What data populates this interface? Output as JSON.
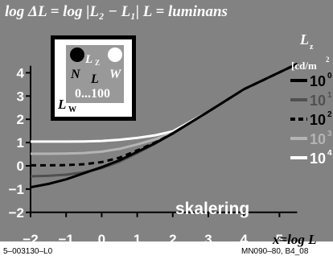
{
  "header": {
    "title": "log ΔL = log |L₂ − L₁|   L = luminans"
  },
  "footer": {
    "left_code": "5–003130–L0",
    "right_code": "MN090–80, B4_08"
  },
  "colors": {
    "background": "#828282",
    "frame": "#ffffff",
    "text": "#ffffff"
  },
  "inset": {
    "label_n": "N",
    "label_l": "L",
    "label_w": "W",
    "label_lz": "L",
    "label_lz_sub": "Z",
    "range": "0...100",
    "label_lw": "L",
    "label_lw_sub": "W"
  },
  "legend": {
    "title": "L",
    "title_sub": "z",
    "unit": "[cd/m",
    "unit_sup": "2",
    "items": [
      {
        "label": "10",
        "exp": "0",
        "color": "#000000",
        "dash": "solid"
      },
      {
        "label": "10",
        "exp": "1",
        "color": "#505050",
        "dash": "solid"
      },
      {
        "label": "10",
        "exp": "2",
        "color": "#000000",
        "dash": "dashed"
      },
      {
        "label": "10",
        "exp": "3",
        "color": "#b4b4b4",
        "dash": "solid"
      },
      {
        "label": "10",
        "exp": "4",
        "color": "#ffffff",
        "dash": "solid"
      }
    ]
  },
  "annotation": "skalering",
  "chart_data": {
    "type": "line",
    "title": "log ΔL = log |L₂ − L₁|   L = luminans",
    "xlabel": "x=log L",
    "ylabel": "",
    "xlim": [
      -2,
      5.5
    ],
    "ylim": [
      -2,
      4.4
    ],
    "x_ticks": [
      -2,
      -1,
      0,
      1,
      2,
      3,
      4,
      5
    ],
    "y_ticks": [
      -2,
      -1,
      0,
      1,
      2,
      3,
      4
    ],
    "grid": false,
    "series": [
      {
        "name": "10⁰",
        "x": [
          -2,
          -1.5,
          -1,
          -0.5,
          0,
          0.5,
          1,
          1.5,
          2,
          3,
          4,
          5.5
        ],
        "y": [
          -0.92,
          -0.78,
          -0.58,
          -0.32,
          -0.06,
          0.24,
          0.6,
          0.97,
          1.39,
          2.33,
          3.29,
          4.38
        ]
      },
      {
        "name": "10¹",
        "x": [
          -2,
          -1.5,
          -1,
          -0.5,
          0,
          0.5,
          1,
          1.5,
          2,
          3,
          4,
          5.5
        ],
        "y": [
          -0.45,
          -0.43,
          -0.38,
          -0.28,
          -0.1,
          0.18,
          0.55,
          0.95,
          1.39,
          2.33,
          3.29,
          4.38
        ]
      },
      {
        "name": "10²",
        "x": [
          -2,
          -1.5,
          -1,
          -0.5,
          0,
          0.5,
          1,
          1.5,
          2,
          3,
          4,
          5.5
        ],
        "y": [
          0.02,
          0.02,
          0.03,
          0.07,
          0.16,
          0.35,
          0.66,
          1.0,
          1.39,
          2.33,
          3.29,
          4.38
        ]
      },
      {
        "name": "10³",
        "x": [
          -2,
          -1.5,
          -1,
          -0.5,
          0,
          0.5,
          1,
          1.5,
          2,
          3,
          4,
          5.5
        ],
        "y": [
          0.52,
          0.52,
          0.53,
          0.55,
          0.61,
          0.73,
          0.92,
          1.14,
          1.42,
          2.33,
          3.29,
          4.38
        ]
      },
      {
        "name": "10⁴",
        "x": [
          -2,
          -1.5,
          -1,
          -0.5,
          0,
          0.5,
          1,
          1.5,
          2,
          3,
          4,
          5.5
        ],
        "y": [
          1.04,
          1.04,
          1.04,
          1.05,
          1.07,
          1.12,
          1.2,
          1.31,
          1.48,
          2.33,
          3.29,
          4.38
        ]
      }
    ]
  }
}
